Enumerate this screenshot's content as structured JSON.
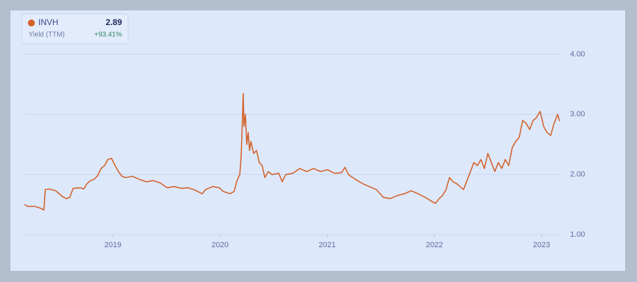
{
  "chart_data": {
    "type": "line",
    "legend": {
      "value": "2.89",
      "metric": "Yield (TTM)",
      "change": "+93.41%"
    },
    "xlim": [
      2018.174,
      2023.182
    ],
    "xticks": [
      2019,
      2020,
      2021,
      2022,
      2023
    ],
    "ylim": [
      1,
      4
    ],
    "yticks": [
      {
        "value": 1,
        "label": "1.00"
      },
      {
        "value": 2,
        "label": "2.00"
      },
      {
        "value": 3,
        "label": "3.00"
      },
      {
        "value": 4,
        "label": "4.00"
      }
    ],
    "grid": true,
    "series": [
      {
        "name": "INVH",
        "color": "#d4622a",
        "x": [
          2018.174,
          2018.207,
          2018.272,
          2018.324,
          2018.356,
          2018.369,
          2018.402,
          2018.467,
          2018.532,
          2018.564,
          2018.597,
          2018.629,
          2018.694,
          2018.727,
          2018.759,
          2018.792,
          2018.824,
          2018.857,
          2018.889,
          2018.922,
          2018.954,
          2018.987,
          2019.02,
          2019.052,
          2019.085,
          2019.117,
          2019.182,
          2019.247,
          2019.312,
          2019.377,
          2019.442,
          2019.507,
          2019.572,
          2019.637,
          2019.702,
          2019.767,
          2019.833,
          2019.865,
          2019.93,
          2019.995,
          2020.028,
          2020.093,
          2020.132,
          2020.158,
          2020.184,
          2020.197,
          2020.21,
          2020.216,
          2020.223,
          2020.236,
          2020.249,
          2020.262,
          2020.275,
          2020.288,
          2020.314,
          2020.34,
          2020.366,
          2020.392,
          2020.418,
          2020.45,
          2020.483,
          2020.548,
          2020.58,
          2020.613,
          2020.678,
          2020.743,
          2020.808,
          2020.873,
          2020.938,
          2021.003,
          2021.068,
          2021.133,
          2021.166,
          2021.198,
          2021.263,
          2021.328,
          2021.393,
          2021.458,
          2021.524,
          2021.589,
          2021.654,
          2021.719,
          2021.784,
          2021.849,
          2021.914,
          2021.979,
          2022.011,
          2022.044,
          2022.076,
          2022.109,
          2022.141,
          2022.174,
          2022.207,
          2022.239,
          2022.272,
          2022.304,
          2022.337,
          2022.369,
          2022.402,
          2022.434,
          2022.467,
          2022.499,
          2022.532,
          2022.564,
          2022.597,
          2022.629,
          2022.662,
          2022.694,
          2022.727,
          2022.759,
          2022.792,
          2022.824,
          2022.857,
          2022.889,
          2022.922,
          2022.954,
          2022.987,
          2023.02,
          2023.052,
          2023.085,
          2023.117,
          2023.15,
          2023.169
        ],
        "values": [
          1.5,
          1.47,
          1.47,
          1.44,
          1.41,
          1.75,
          1.76,
          1.73,
          1.63,
          1.6,
          1.62,
          1.77,
          1.78,
          1.76,
          1.85,
          1.9,
          1.92,
          1.98,
          2.1,
          2.15,
          2.25,
          2.27,
          2.15,
          2.05,
          1.97,
          1.95,
          1.97,
          1.92,
          1.88,
          1.9,
          1.86,
          1.78,
          1.8,
          1.77,
          1.78,
          1.74,
          1.68,
          1.75,
          1.8,
          1.78,
          1.72,
          1.68,
          1.72,
          1.9,
          2.0,
          2.3,
          3.0,
          3.35,
          2.8,
          3.0,
          2.5,
          2.7,
          2.4,
          2.55,
          2.35,
          2.4,
          2.2,
          2.15,
          1.95,
          2.05,
          2.0,
          2.02,
          1.88,
          2.0,
          2.02,
          2.1,
          2.05,
          2.1,
          2.05,
          2.08,
          2.02,
          2.03,
          2.12,
          2.0,
          1.92,
          1.85,
          1.8,
          1.75,
          1.62,
          1.6,
          1.65,
          1.68,
          1.73,
          1.68,
          1.62,
          1.55,
          1.52,
          1.6,
          1.65,
          1.75,
          1.95,
          1.88,
          1.85,
          1.8,
          1.75,
          1.9,
          2.05,
          2.2,
          2.15,
          2.25,
          2.1,
          2.35,
          2.2,
          2.05,
          2.2,
          2.1,
          2.25,
          2.15,
          2.45,
          2.55,
          2.62,
          2.9,
          2.85,
          2.75,
          2.9,
          2.95,
          3.05,
          2.8,
          2.7,
          2.65,
          2.85,
          3.0,
          2.89
        ]
      }
    ]
  }
}
